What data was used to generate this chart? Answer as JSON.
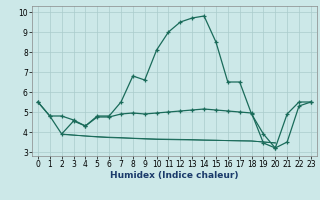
{
  "xlabel": "Humidex (Indice chaleur)",
  "bg_color": "#cce8e8",
  "grid_color": "#aacccc",
  "line_color": "#1a6b5a",
  "xlim": [
    -0.5,
    23.5
  ],
  "ylim": [
    2.8,
    10.3
  ],
  "xticks": [
    0,
    1,
    2,
    3,
    4,
    5,
    6,
    7,
    8,
    9,
    10,
    11,
    12,
    13,
    14,
    15,
    16,
    17,
    18,
    19,
    20,
    21,
    22,
    23
  ],
  "yticks": [
    3,
    4,
    5,
    6,
    7,
    8,
    9,
    10
  ],
  "main_x": [
    0,
    1,
    2,
    3,
    4,
    5,
    6,
    7,
    8,
    9,
    10,
    11,
    12,
    13,
    14,
    15,
    16,
    17,
    18,
    19,
    20,
    21,
    22,
    23
  ],
  "main_y": [
    5.5,
    4.8,
    4.8,
    4.6,
    4.3,
    4.8,
    4.8,
    5.5,
    6.8,
    6.6,
    8.1,
    9.0,
    9.5,
    9.7,
    9.8,
    8.5,
    6.5,
    6.5,
    4.9,
    3.9,
    3.2,
    4.9,
    5.5,
    5.5
  ],
  "line2_x": [
    0,
    1,
    2,
    3,
    4,
    5,
    6,
    7,
    8,
    9,
    10,
    11,
    12,
    13,
    14,
    15,
    16,
    17,
    18,
    19,
    20,
    21,
    22,
    23
  ],
  "line2_y": [
    5.5,
    4.8,
    3.9,
    4.55,
    4.3,
    4.75,
    4.75,
    4.9,
    4.95,
    4.9,
    4.95,
    5.0,
    5.05,
    5.1,
    5.15,
    5.1,
    5.05,
    5.0,
    4.95,
    3.45,
    3.2,
    3.5,
    5.3,
    5.5
  ],
  "line3_x": [
    2,
    3,
    4,
    5,
    6,
    7,
    8,
    9,
    10,
    11,
    12,
    13,
    14,
    15,
    16,
    17,
    18,
    19,
    20
  ],
  "line3_y": [
    3.9,
    3.85,
    3.8,
    3.75,
    3.72,
    3.7,
    3.68,
    3.65,
    3.63,
    3.62,
    3.61,
    3.6,
    3.59,
    3.58,
    3.57,
    3.56,
    3.55,
    3.5,
    3.45
  ],
  "line4_x": [
    2,
    3,
    4,
    5,
    6,
    7,
    8,
    9,
    10,
    11,
    12,
    13,
    14,
    15,
    16,
    17,
    18,
    19,
    20
  ],
  "line4_y": [
    3.88,
    3.84,
    3.8,
    3.77,
    3.74,
    3.72,
    3.69,
    3.67,
    3.65,
    3.64,
    3.63,
    3.62,
    3.6,
    3.59,
    3.57,
    3.56,
    3.55,
    3.5,
    3.46
  ]
}
